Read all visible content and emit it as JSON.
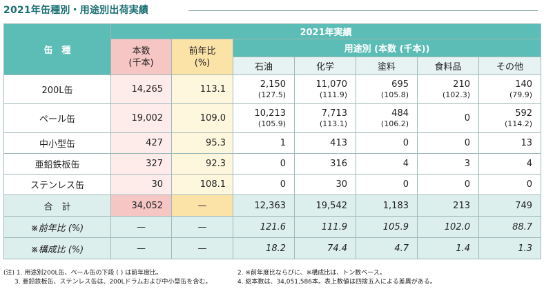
{
  "title": "2021年缶種別・用途別出荷実績",
  "headers": {
    "can_type": "缶　種",
    "year": "2021年実績",
    "quantity": "本数\n(千本)",
    "yoy": "前年比\n(%)",
    "by_use": "用途別 (本数 (千本))",
    "uses": [
      "石油",
      "化学",
      "塗料",
      "食料品",
      "その他"
    ]
  },
  "rows": [
    {
      "name": "200L缶",
      "qty": "14,265",
      "yoy": "113.1",
      "uses": [
        {
          "v": "2,150",
          "p": "(127.5)"
        },
        {
          "v": "11,070",
          "p": "(111.9)"
        },
        {
          "v": "695",
          "p": "(105.8)"
        },
        {
          "v": "210",
          "p": "(102.3)"
        },
        {
          "v": "140",
          "p": "(79.9)"
        }
      ]
    },
    {
      "name": "ペール缶",
      "qty": "19,002",
      "yoy": "109.0",
      "uses": [
        {
          "v": "10,213",
          "p": "(105.9)"
        },
        {
          "v": "7,713",
          "p": "(113.1)"
        },
        {
          "v": "484",
          "p": "(106.2)"
        },
        {
          "v": "0",
          "p": ""
        },
        {
          "v": "592",
          "p": "(114.2)"
        }
      ]
    },
    {
      "name": "中小型缶",
      "qty": "427",
      "yoy": "95.3",
      "uses": [
        {
          "v": "1",
          "p": ""
        },
        {
          "v": "413",
          "p": ""
        },
        {
          "v": "0",
          "p": ""
        },
        {
          "v": "0",
          "p": ""
        },
        {
          "v": "13",
          "p": ""
        }
      ]
    },
    {
      "name": "亜鉛鉄板缶",
      "qty": "327",
      "yoy": "92.3",
      "uses": [
        {
          "v": "0",
          "p": ""
        },
        {
          "v": "316",
          "p": ""
        },
        {
          "v": "4",
          "p": ""
        },
        {
          "v": "3",
          "p": ""
        },
        {
          "v": "4",
          "p": ""
        }
      ]
    },
    {
      "name": "ステンレス缶",
      "qty": "30",
      "yoy": "108.1",
      "uses": [
        {
          "v": "0",
          "p": ""
        },
        {
          "v": "30",
          "p": ""
        },
        {
          "v": "0",
          "p": ""
        },
        {
          "v": "0",
          "p": ""
        },
        {
          "v": "0",
          "p": ""
        }
      ]
    }
  ],
  "total": {
    "name": "合　計",
    "qty": "34,052",
    "yoy": "—",
    "uses": [
      "12,363",
      "19,542",
      "1,183",
      "213",
      "749"
    ]
  },
  "yoy_row": {
    "name": "※前年比 (%)",
    "qty": "—",
    "yoy": "—",
    "uses": [
      "121.6",
      "111.9",
      "105.9",
      "102.0",
      "88.7"
    ]
  },
  "comp_row": {
    "name": "※構成比 (%)",
    "qty": "—",
    "yoy": "—",
    "uses": [
      "18.2",
      "74.4",
      "4.7",
      "1.4",
      "1.3"
    ]
  },
  "notes": {
    "n1": "(注) 1. 用途別200L缶、ペール缶の下段 ( ) は前年度比。",
    "n2": "2. ※前年度比ならびに、※構成比は、トン数ベース。",
    "n3": "3. 亜鉛鉄板缶、ステンレス缶は、200Lドラムおよび中小型缶を含む。",
    "n4": "4. 総本数は、34,051,586本。表上数値は四捨五入による差異がある。"
  },
  "colors": {
    "title": "#1a6e72",
    "header_teal": "#5cbdb6",
    "pink": "#f6c6c4",
    "yellow": "#fbe3a8",
    "light_teal": "#dcefed"
  }
}
